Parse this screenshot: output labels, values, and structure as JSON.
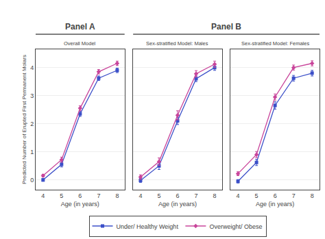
{
  "chart_data": [
    {
      "type": "line",
      "title": "Overall Model",
      "annotations": [
        "Panel A"
      ],
      "xlabel": "Age (in years)",
      "ylabel": "Predicted Number of Erupted First Permanent Molars",
      "x": [
        4,
        5,
        6,
        7,
        8
      ],
      "series": [
        {
          "name": "Under/ Healthy Weight",
          "color": "#3b4fc8",
          "marker": "square",
          "values": [
            0.0,
            0.55,
            2.35,
            3.62,
            3.9
          ],
          "errors": [
            0.05,
            0.09,
            0.09,
            0.08,
            0.08
          ]
        },
        {
          "name": "Overweight/ Obese",
          "color": "#c8449a",
          "marker": "diamond",
          "values": [
            0.15,
            0.72,
            2.55,
            3.85,
            4.15
          ],
          "errors": [
            0.05,
            0.09,
            0.09,
            0.08,
            0.08
          ]
        }
      ],
      "xlim": [
        3.6,
        8.4
      ],
      "xticks": [
        4,
        5,
        6,
        7,
        8
      ],
      "ylim": [
        -0.35,
        4.65
      ],
      "yticks": [
        0,
        1,
        2,
        3,
        4
      ],
      "grid": "y",
      "legend": "bottom"
    },
    {
      "type": "line",
      "title": "Sex-stratified Model: Males",
      "annotations": [
        "Panel B"
      ],
      "xlabel": "Age (in years)",
      "x": [
        4,
        5,
        6,
        7,
        8
      ],
      "series": [
        {
          "name": "Under/ Healthy Weight",
          "color": "#3b4fc8",
          "marker": "square",
          "values": [
            -0.02,
            0.5,
            2.1,
            3.6,
            4.0
          ],
          "errors": [
            0.07,
            0.13,
            0.13,
            0.1,
            0.1
          ]
        },
        {
          "name": "Overweight/ Obese",
          "color": "#c8449a",
          "marker": "diamond",
          "values": [
            0.1,
            0.65,
            2.3,
            3.78,
            4.12
          ],
          "errors": [
            0.08,
            0.13,
            0.16,
            0.11,
            0.11
          ]
        }
      ],
      "xlim": [
        3.6,
        8.4
      ],
      "xticks": [
        4,
        5,
        6,
        7,
        8
      ],
      "ylim": [
        -0.35,
        4.65
      ],
      "yticks": [
        0,
        1,
        2,
        3,
        4
      ],
      "grid": "y",
      "tick_labels": "x"
    },
    {
      "type": "line",
      "title": "Sex-stratified Model: Females",
      "xlabel": "Age (in years)",
      "x": [
        4,
        5,
        6,
        7,
        8
      ],
      "series": [
        {
          "name": "Under/ Healthy Weight",
          "color": "#3b4fc8",
          "marker": "square",
          "values": [
            -0.05,
            0.62,
            2.65,
            3.62,
            3.8
          ],
          "errors": [
            0.06,
            0.11,
            0.13,
            0.1,
            0.1
          ]
        },
        {
          "name": "Overweight/ Obese",
          "color": "#c8449a",
          "marker": "diamond",
          "values": [
            0.22,
            0.9,
            2.95,
            4.0,
            4.15
          ],
          "errors": [
            0.07,
            0.11,
            0.11,
            0.09,
            0.09
          ]
        }
      ],
      "xlim": [
        3.6,
        8.4
      ],
      "xticks": [
        4,
        5,
        6,
        7,
        8
      ],
      "ylim": [
        -0.35,
        4.65
      ],
      "yticks": [
        0,
        1,
        2,
        3,
        4
      ],
      "grid": "y",
      "tick_labels": "x"
    }
  ]
}
